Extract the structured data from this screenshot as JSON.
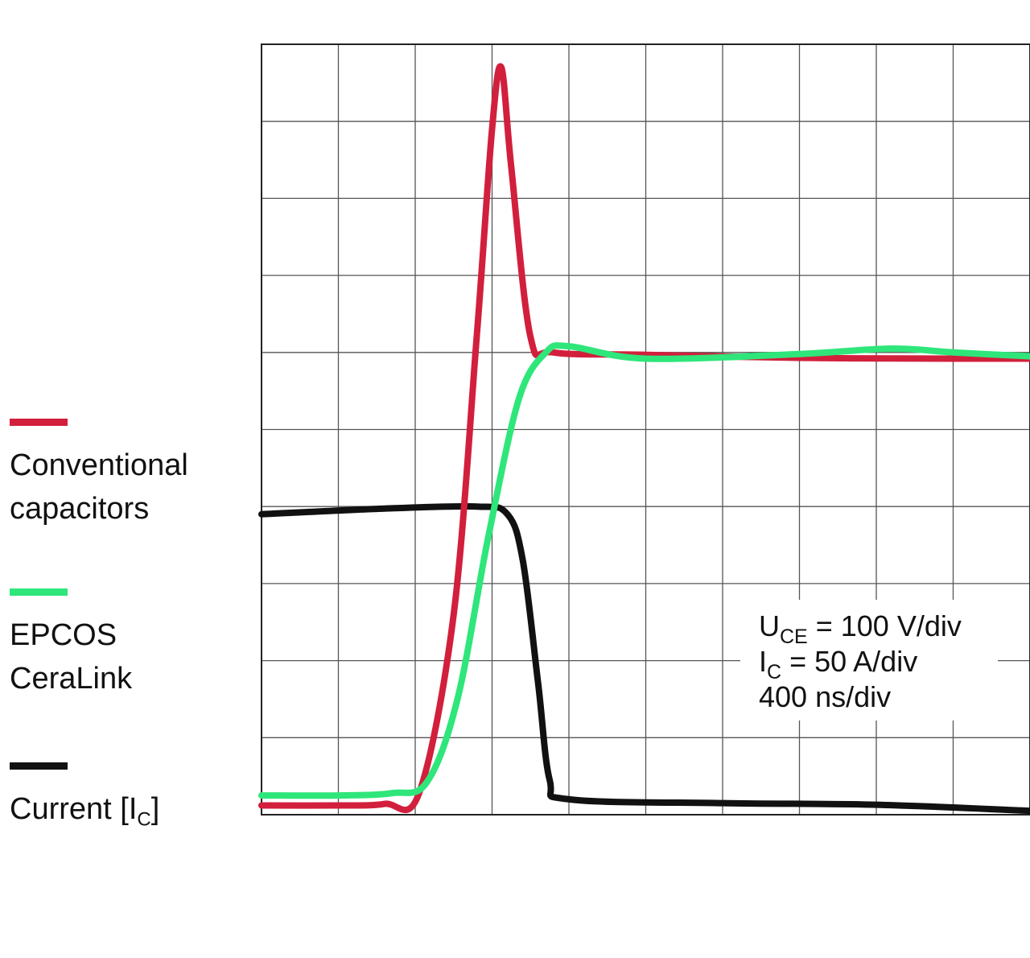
{
  "chart_data": {
    "type": "line",
    "xlabel": "",
    "ylabel": "",
    "grid": true,
    "divisions": {
      "x": 10,
      "y": 10
    },
    "legend_position": "left",
    "series": [
      {
        "name": "Conventional capacitors",
        "color": "#d21f3c",
        "points": [
          [
            0,
            0.12
          ],
          [
            1.0,
            0.12
          ],
          [
            1.6,
            0.14
          ],
          [
            2.05,
            0.28
          ],
          [
            2.5,
            2.6
          ],
          [
            2.8,
            6.2
          ],
          [
            3.0,
            8.9
          ],
          [
            3.12,
            9.7
          ],
          [
            3.25,
            8.4
          ],
          [
            3.5,
            6.2
          ],
          [
            3.8,
            6.0
          ],
          [
            5,
            5.97
          ],
          [
            7,
            5.93
          ],
          [
            9,
            5.92
          ],
          [
            10,
            5.92
          ]
        ]
      },
      {
        "name": "EPCOS CeraLink",
        "color": "#2ee67a",
        "points": [
          [
            0,
            0.25
          ],
          [
            1.0,
            0.25
          ],
          [
            1.7,
            0.28
          ],
          [
            2.15,
            0.42
          ],
          [
            2.55,
            1.5
          ],
          [
            2.95,
            3.6
          ],
          [
            3.35,
            5.4
          ],
          [
            3.7,
            6.0
          ],
          [
            4.0,
            6.08
          ],
          [
            5,
            5.92
          ],
          [
            7,
            5.98
          ],
          [
            8.2,
            6.05
          ],
          [
            9,
            6.0
          ],
          [
            10,
            5.95
          ]
        ]
      },
      {
        "name": "Current [IC]",
        "color": "#111111",
        "points": [
          [
            0,
            3.9
          ],
          [
            1.5,
            3.97
          ],
          [
            2.8,
            4.0
          ],
          [
            3.2,
            3.9
          ],
          [
            3.4,
            3.3
          ],
          [
            3.6,
            1.7
          ],
          [
            3.75,
            0.45
          ],
          [
            4,
            0.2
          ],
          [
            6,
            0.15
          ],
          [
            8,
            0.13
          ],
          [
            10,
            0.05
          ]
        ]
      }
    ],
    "annotations": {
      "uce_symbol": "U",
      "uce_sub": "CE",
      "uce_text": " = 100 V/div",
      "ic_symbol": "I",
      "ic_sub": "C",
      "ic_text": " = 50 A/div",
      "time_text": "400 ns/div"
    }
  },
  "legend": {
    "conventional": {
      "label": "Conventional\ncapacitors",
      "color": "#d21f3c"
    },
    "ceralink": {
      "label": "EPCOS\nCeraLink",
      "color": "#2ee67a"
    },
    "current": {
      "label_main": "Current [I",
      "label_sub": "C",
      "label_end": "]",
      "color": "#111111"
    }
  }
}
